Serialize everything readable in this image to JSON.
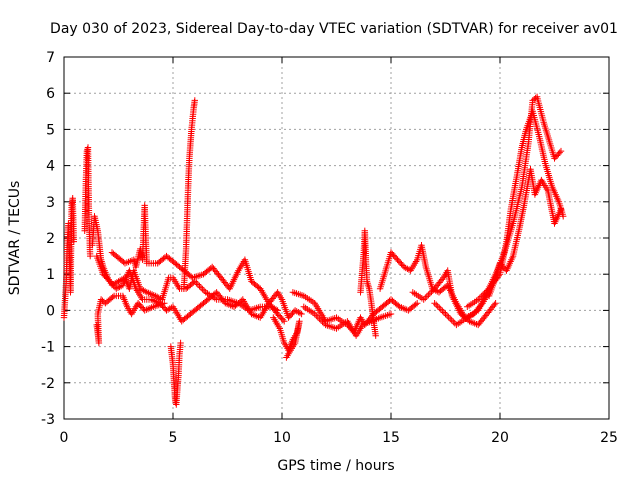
{
  "chart_data": {
    "type": "scatter",
    "marker": "+",
    "title": "Day 030 of 2023, Sidereal Day-to-day VTEC variation (SDTVAR) for receiver av01",
    "xlabel": "GPS time / hours",
    "ylabel": "SDTVAR / TECUs",
    "xlim": [
      0,
      25
    ],
    "ylim": [
      -3,
      7
    ],
    "xticks": [
      0,
      5,
      10,
      15,
      20,
      25
    ],
    "yticks": [
      -3,
      -2,
      -1,
      0,
      1,
      2,
      3,
      4,
      5,
      6,
      7
    ],
    "grid": true,
    "series": [
      {
        "name": "SDTVAR",
        "color": "#ff0000",
        "bands": [
          [
            [
              0.0,
              -0.2
            ],
            [
              0.1,
              0.8
            ],
            [
              0.15,
              1.8
            ],
            [
              0.2,
              2.4
            ],
            [
              0.25,
              1.5
            ],
            [
              0.3,
              0.5
            ],
            [
              0.35,
              2.9
            ],
            [
              0.4,
              3.1
            ],
            [
              0.45,
              1.9
            ]
          ],
          [
            [
              0.95,
              2.2
            ],
            [
              1.0,
              3.5
            ],
            [
              1.05,
              4.4
            ],
            [
              1.1,
              4.5
            ],
            [
              1.15,
              2.4
            ],
            [
              1.2,
              1.5
            ]
          ],
          [
            [
              1.3,
              1.8
            ],
            [
              1.4,
              2.6
            ],
            [
              1.55,
              2.2
            ],
            [
              1.7,
              1.4
            ],
            [
              1.8,
              1.2
            ],
            [
              2.0,
              0.9
            ],
            [
              2.2,
              0.7
            ],
            [
              2.5,
              0.8
            ],
            [
              2.8,
              0.9
            ],
            [
              3.0,
              0.6
            ],
            [
              3.2,
              1.1
            ],
            [
              3.5,
              0.6
            ],
            [
              3.8,
              0.5
            ],
            [
              4.2,
              0.4
            ],
            [
              4.5,
              0.3
            ],
            [
              4.8,
              0.9
            ],
            [
              5.0,
              0.9
            ],
            [
              5.3,
              0.6
            ],
            [
              5.6,
              0.6
            ],
            [
              6.0,
              0.8
            ],
            [
              6.5,
              0.5
            ],
            [
              7.0,
              0.3
            ],
            [
              7.5,
              0.3
            ],
            [
              8.0,
              0.2
            ],
            [
              8.5,
              0.0
            ],
            [
              9.0,
              0.1
            ],
            [
              9.5,
              0.1
            ],
            [
              9.8,
              0.0
            ]
          ],
          [
            [
              1.5,
              1.5
            ],
            [
              1.8,
              1.0
            ],
            [
              2.1,
              0.8
            ],
            [
              2.4,
              0.6
            ],
            [
              2.7,
              0.7
            ],
            [
              3.0,
              1.1
            ],
            [
              3.3,
              0.6
            ],
            [
              3.6,
              0.3
            ],
            [
              4.0,
              0.3
            ],
            [
              4.4,
              0.2
            ],
            [
              4.7,
              0.0
            ],
            [
              5.0,
              0.1
            ],
            [
              5.4,
              -0.3
            ],
            [
              5.8,
              -0.1
            ],
            [
              6.2,
              0.1
            ],
            [
              6.6,
              0.3
            ],
            [
              7.0,
              0.5
            ],
            [
              7.4,
              0.2
            ],
            [
              7.8,
              0.1
            ],
            [
              8.2,
              0.3
            ],
            [
              8.6,
              -0.1
            ],
            [
              9.0,
              -0.2
            ],
            [
              9.4,
              0.2
            ],
            [
              9.8,
              -0.1
            ],
            [
              10.1,
              -0.3
            ]
          ],
          [
            [
              1.5,
              -0.4
            ],
            [
              1.6,
              -0.9
            ],
            [
              1.55,
              -0.1
            ],
            [
              1.7,
              0.3
            ],
            [
              1.9,
              0.2
            ],
            [
              2.3,
              0.4
            ],
            [
              2.7,
              0.4
            ],
            [
              2.9,
              0.1
            ],
            [
              3.1,
              -0.1
            ],
            [
              3.4,
              0.2
            ],
            [
              3.7,
              0.0
            ],
            [
              4.1,
              0.1
            ],
            [
              4.6,
              0.2
            ]
          ],
          [
            [
              2.2,
              1.6
            ],
            [
              2.4,
              1.5
            ],
            [
              2.8,
              1.3
            ],
            [
              3.2,
              1.4
            ],
            [
              3.3,
              1.2
            ],
            [
              3.5,
              1.7
            ],
            [
              3.6,
              1.4
            ],
            [
              3.7,
              2.9
            ],
            [
              3.75,
              2.0
            ],
            [
              3.8,
              1.3
            ],
            [
              4.3,
              1.3
            ],
            [
              4.7,
              1.5
            ],
            [
              5.1,
              1.3
            ],
            [
              5.5,
              1.1
            ],
            [
              5.9,
              0.9
            ],
            [
              6.4,
              1.0
            ],
            [
              6.8,
              1.2
            ],
            [
              7.2,
              0.9
            ],
            [
              7.6,
              0.6
            ],
            [
              8.0,
              1.1
            ],
            [
              8.3,
              1.4
            ],
            [
              8.6,
              0.8
            ],
            [
              9.0,
              0.6
            ]
          ],
          [
            [
              4.9,
              -1.0
            ],
            [
              5.0,
              -1.5
            ],
            [
              5.05,
              -2.0
            ],
            [
              5.1,
              -2.5
            ],
            [
              5.15,
              -2.6
            ],
            [
              5.2,
              -2.2
            ],
            [
              5.25,
              -1.8
            ],
            [
              5.3,
              -1.2
            ],
            [
              5.35,
              -0.9
            ]
          ],
          [
            [
              5.5,
              0.6
            ],
            [
              5.6,
              1.7
            ],
            [
              5.65,
              2.6
            ],
            [
              5.7,
              3.5
            ],
            [
              5.75,
              4.2
            ],
            [
              5.8,
              4.6
            ],
            [
              5.85,
              5.0
            ],
            [
              5.9,
              5.3
            ],
            [
              5.95,
              5.6
            ],
            [
              6.0,
              5.8
            ]
          ],
          [
            [
              9.6,
              -0.2
            ],
            [
              9.9,
              -0.5
            ],
            [
              10.1,
              -0.9
            ],
            [
              10.3,
              -1.1
            ],
            [
              10.5,
              -0.8
            ],
            [
              10.7,
              -0.6
            ],
            [
              10.8,
              -0.3
            ],
            [
              10.6,
              -0.9
            ],
            [
              10.2,
              -1.3
            ]
          ],
          [
            [
              9.0,
              0.6
            ],
            [
              9.4,
              0.2
            ],
            [
              9.8,
              0.5
            ],
            [
              10.0,
              0.3
            ],
            [
              10.3,
              -0.2
            ],
            [
              10.6,
              0.0
            ],
            [
              10.9,
              -0.1
            ]
          ],
          [
            [
              10.5,
              0.5
            ],
            [
              11.0,
              0.4
            ],
            [
              11.5,
              0.2
            ],
            [
              12.0,
              -0.3
            ],
            [
              12.5,
              -0.2
            ],
            [
              13.0,
              -0.4
            ],
            [
              13.3,
              -0.6
            ],
            [
              13.6,
              -0.2
            ],
            [
              13.8,
              -0.4
            ],
            [
              14.2,
              -0.1
            ],
            [
              14.6,
              0.1
            ],
            [
              15.0,
              0.3
            ],
            [
              15.4,
              0.1
            ],
            [
              15.8,
              0.0
            ],
            [
              16.2,
              0.2
            ]
          ],
          [
            [
              11.0,
              0.1
            ],
            [
              11.5,
              -0.1
            ],
            [
              12.0,
              -0.4
            ],
            [
              12.5,
              -0.5
            ],
            [
              13.0,
              -0.3
            ],
            [
              13.4,
              -0.7
            ],
            [
              13.7,
              -0.4
            ],
            [
              14.1,
              -0.3
            ],
            [
              14.5,
              -0.2
            ],
            [
              15.0,
              -0.1
            ]
          ],
          [
            [
              13.6,
              0.5
            ],
            [
              13.75,
              1.6
            ],
            [
              13.8,
              2.2
            ],
            [
              13.85,
              1.4
            ],
            [
              13.9,
              0.8
            ],
            [
              14.0,
              0.6
            ],
            [
              14.1,
              0.2
            ],
            [
              14.2,
              -0.3
            ],
            [
              14.3,
              -0.7
            ]
          ],
          [
            [
              14.5,
              0.6
            ],
            [
              14.8,
              1.2
            ],
            [
              15.0,
              1.6
            ],
            [
              15.3,
              1.4
            ],
            [
              15.6,
              1.2
            ],
            [
              15.9,
              1.1
            ],
            [
              16.2,
              1.4
            ],
            [
              16.4,
              1.8
            ],
            [
              16.6,
              1.2
            ],
            [
              16.9,
              0.6
            ],
            [
              17.2,
              0.5
            ],
            [
              17.6,
              0.7
            ],
            [
              18.0,
              0.2
            ],
            [
              18.4,
              -0.2
            ],
            [
              18.8,
              -0.1
            ],
            [
              19.2,
              0.2
            ],
            [
              19.5,
              0.5
            ]
          ],
          [
            [
              16.0,
              0.5
            ],
            [
              16.5,
              0.3
            ],
            [
              17.0,
              0.6
            ],
            [
              17.4,
              0.9
            ],
            [
              17.6,
              1.1
            ],
            [
              17.8,
              0.4
            ],
            [
              18.2,
              -0.1
            ],
            [
              18.6,
              -0.3
            ],
            [
              19.0,
              -0.4
            ],
            [
              19.4,
              -0.1
            ],
            [
              19.8,
              0.2
            ]
          ],
          [
            [
              17.0,
              0.2
            ],
            [
              17.5,
              -0.1
            ],
            [
              18.0,
              -0.4
            ],
            [
              18.5,
              -0.2
            ],
            [
              19.0,
              0.0
            ],
            [
              19.4,
              0.5
            ],
            [
              19.8,
              1.0
            ],
            [
              20.2,
              1.6
            ],
            [
              20.6,
              2.4
            ],
            [
              21.0,
              3.4
            ],
            [
              21.3,
              4.6
            ],
            [
              21.5,
              5.8
            ],
            [
              21.7,
              5.9
            ],
            [
              22.0,
              5.2
            ],
            [
              22.3,
              4.6
            ],
            [
              22.5,
              4.2
            ],
            [
              22.8,
              4.4
            ]
          ],
          [
            [
              18.5,
              0.1
            ],
            [
              19.0,
              0.3
            ],
            [
              19.5,
              0.6
            ],
            [
              20.0,
              1.0
            ],
            [
              20.3,
              1.9
            ],
            [
              20.5,
              2.8
            ],
            [
              20.8,
              3.8
            ],
            [
              21.0,
              4.5
            ],
            [
              21.2,
              5.0
            ],
            [
              21.5,
              5.5
            ],
            [
              21.8,
              4.8
            ],
            [
              22.1,
              4.0
            ],
            [
              22.4,
              3.4
            ],
            [
              22.7,
              3.0
            ],
            [
              22.9,
              2.6
            ]
          ],
          [
            [
              19.5,
              0.4
            ],
            [
              19.8,
              0.9
            ],
            [
              20.0,
              1.3
            ],
            [
              20.3,
              1.1
            ],
            [
              20.6,
              1.5
            ],
            [
              20.9,
              2.3
            ],
            [
              21.1,
              2.9
            ],
            [
              21.4,
              3.9
            ],
            [
              21.6,
              3.2
            ],
            [
              21.9,
              3.6
            ],
            [
              22.2,
              3.3
            ],
            [
              22.5,
              2.4
            ],
            [
              22.8,
              2.8
            ]
          ]
        ]
      }
    ]
  }
}
